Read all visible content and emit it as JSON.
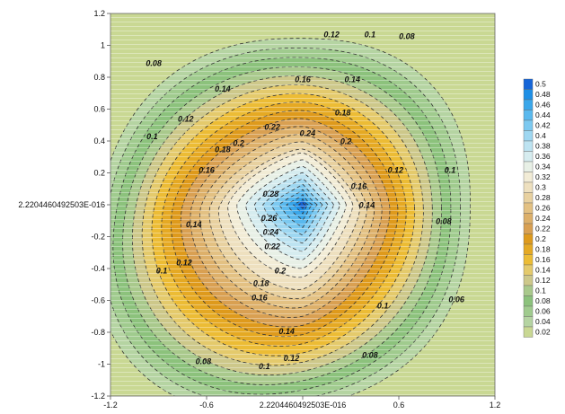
{
  "chart_data": {
    "type": "heatmap",
    "subtype": "filled-contour",
    "title": "",
    "xlabel": "",
    "ylabel": "",
    "xlim": [
      -1.2,
      1.2
    ],
    "ylim": [
      -1.2,
      1.2
    ],
    "x_tick_labels": [
      "-1.2",
      "-0.6",
      "2.2204460492503E-016",
      "0.6",
      "1.2"
    ],
    "x_tick_values": [
      -1.2,
      -0.6,
      0,
      0.6,
      1.2
    ],
    "y_tick_labels": [
      "1.2",
      "1",
      "0.8",
      "0.6",
      "0.4",
      "0.2",
      "2.2204460492503E-016",
      "-0.2",
      "-0.4",
      "-0.6",
      "-0.8",
      "-1",
      "-1.2"
    ],
    "y_tick_values": [
      1.2,
      1,
      0.8,
      0.6,
      0.4,
      0.2,
      0,
      -0.2,
      -0.4,
      -0.6,
      -0.8,
      -1,
      -1.2
    ],
    "contour_levels": [
      0.02,
      0.04,
      0.06,
      0.08,
      0.1,
      0.12,
      0.14,
      0.16,
      0.18,
      0.2,
      0.22,
      0.24,
      0.26,
      0.28,
      0.3,
      0.32,
      0.34,
      0.36,
      0.38,
      0.4,
      0.42,
      0.44,
      0.46,
      0.48,
      0.5
    ],
    "legend": {
      "position": "right",
      "labels": [
        "0.5",
        "0.48",
        "0.46",
        "0.44",
        "0.42",
        "0.4",
        "0.38",
        "0.36",
        "0.34",
        "0.32",
        "0.3",
        "0.28",
        "0.26",
        "0.24",
        "0.22",
        "0.2",
        "0.18",
        "0.16",
        "0.14",
        "0.12",
        "0.1",
        "0.08",
        "0.06",
        "0.04",
        "0.02"
      ],
      "colors": [
        "#1565d8",
        "#1e8fe6",
        "#3aa7ea",
        "#5ab9ee",
        "#7cc9f0",
        "#9ed7f1",
        "#bde3f1",
        "#d6ecef",
        "#e8f0e6",
        "#f2ecd6",
        "#eee0bf",
        "#e8d1a0",
        "#e3c183",
        "#ddb06a",
        "#d9a052",
        "#de9a1c",
        "#e5a923",
        "#ecbc35",
        "#e4ca6c",
        "#cdc88a",
        "#a9c98c",
        "#8cc27c",
        "#a0cb8e",
        "#b5d4a2",
        "#c9d893"
      ]
    },
    "peak": {
      "x": 0.0,
      "y": 0.0,
      "value": 0.5
    },
    "contour_labels": [
      {
        "text": "0.08",
        "x": -0.93,
        "y": 0.87
      },
      {
        "text": "0.12",
        "x": 0.18,
        "y": 1.05
      },
      {
        "text": "0.1",
        "x": 0.42,
        "y": 1.05
      },
      {
        "text": "0.08",
        "x": 0.65,
        "y": 1.04
      },
      {
        "text": "0.16",
        "x": 0.0,
        "y": 0.77
      },
      {
        "text": "0.14",
        "x": 0.31,
        "y": 0.77
      },
      {
        "text": "0.14",
        "x": -0.5,
        "y": 0.71
      },
      {
        "text": "0.18",
        "x": 0.25,
        "y": 0.56
      },
      {
        "text": "0.12",
        "x": -0.73,
        "y": 0.52
      },
      {
        "text": "0.22",
        "x": -0.19,
        "y": 0.47
      },
      {
        "text": "0.24",
        "x": 0.03,
        "y": 0.43
      },
      {
        "text": "0.2",
        "x": 0.27,
        "y": 0.38
      },
      {
        "text": "0.1",
        "x": -0.94,
        "y": 0.41
      },
      {
        "text": "0.18",
        "x": -0.5,
        "y": 0.33
      },
      {
        "text": "0.2",
        "x": -0.4,
        "y": 0.37
      },
      {
        "text": "0.16",
        "x": -0.6,
        "y": 0.2
      },
      {
        "text": "0.12",
        "x": 0.58,
        "y": 0.2
      },
      {
        "text": "0.1",
        "x": 0.92,
        "y": 0.2
      },
      {
        "text": "0.16",
        "x": 0.35,
        "y": 0.1
      },
      {
        "text": "0.14",
        "x": 0.4,
        "y": -0.02
      },
      {
        "text": "0.28",
        "x": -0.2,
        "y": 0.05
      },
      {
        "text": "0.26",
        "x": -0.21,
        "y": -0.1
      },
      {
        "text": "0.24",
        "x": -0.2,
        "y": -0.19
      },
      {
        "text": "0.22",
        "x": -0.19,
        "y": -0.28
      },
      {
        "text": "0.14",
        "x": -0.68,
        "y": -0.14
      },
      {
        "text": "0.12",
        "x": -0.74,
        "y": -0.38
      },
      {
        "text": "0.1",
        "x": -0.88,
        "y": -0.43
      },
      {
        "text": "0.08",
        "x": 0.88,
        "y": -0.12
      },
      {
        "text": "0.2",
        "x": -0.14,
        "y": -0.43
      },
      {
        "text": "0.18",
        "x": -0.26,
        "y": -0.51
      },
      {
        "text": "0.16",
        "x": -0.27,
        "y": -0.6
      },
      {
        "text": "0.1",
        "x": 0.5,
        "y": -0.65
      },
      {
        "text": "0.06",
        "x": 0.96,
        "y": -0.61
      },
      {
        "text": "0.14",
        "x": -0.1,
        "y": -0.81
      },
      {
        "text": "0.12",
        "x": -0.07,
        "y": -0.98
      },
      {
        "text": "0.08",
        "x": 0.42,
        "y": -0.96
      },
      {
        "text": "0.1",
        "x": -0.24,
        "y": -1.03
      },
      {
        "text": "0.08",
        "x": -0.62,
        "y": -1.0
      }
    ]
  }
}
